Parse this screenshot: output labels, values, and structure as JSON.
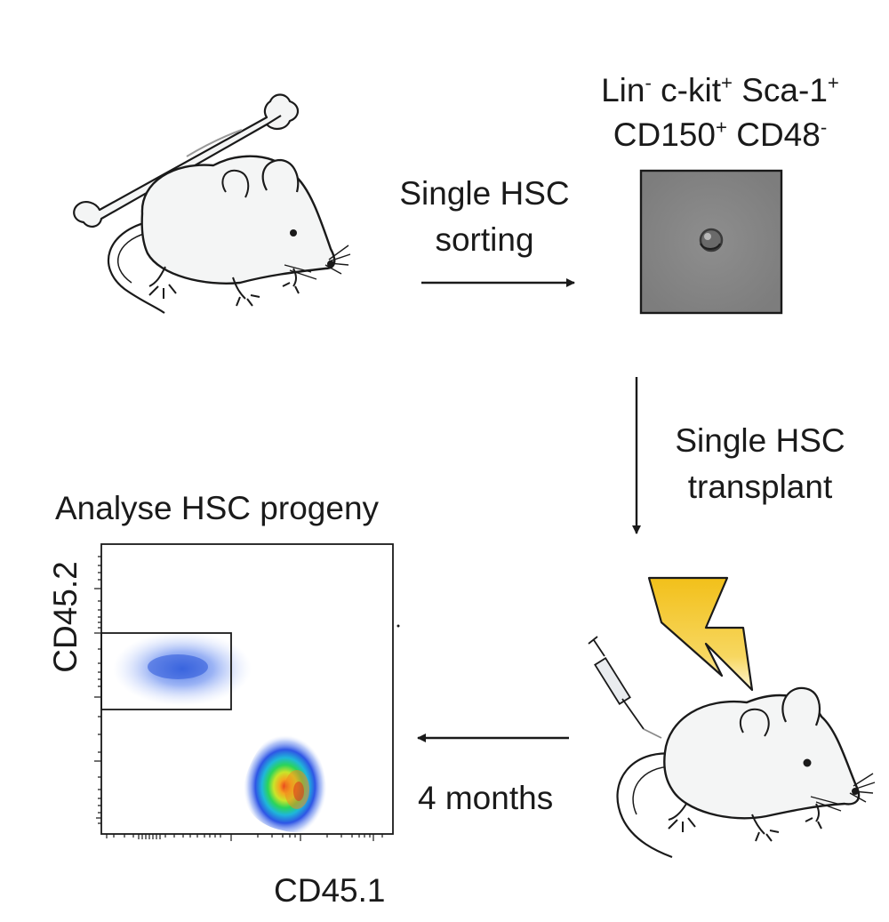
{
  "markers": {
    "line1": [
      {
        "name": "Lin",
        "sign": "-"
      },
      {
        "name": "c-kit",
        "sign": "+"
      },
      {
        "name": "Sca-1",
        "sign": "+"
      }
    ],
    "line2": [
      {
        "name": "CD150",
        "sign": "+"
      },
      {
        "name": "CD48",
        "sign": "-"
      }
    ]
  },
  "steps": {
    "sorting_line1": "Single HSC",
    "sorting_line2": "sorting",
    "transplant_line1": "Single HSC",
    "transplant_line2": "transplant",
    "analyse": "Analyse HSC progeny",
    "duration": "4 months"
  },
  "plot": {
    "y_label": "CD45.2",
    "x_label": "CD45.1"
  },
  "colors": {
    "ink": "#1a1a1a",
    "mouse_fill": "#f4f5f5",
    "bolt_top": "#f3c21a",
    "bolt_bottom": "#fff3c4",
    "cell_image": "#8a8a8a"
  }
}
